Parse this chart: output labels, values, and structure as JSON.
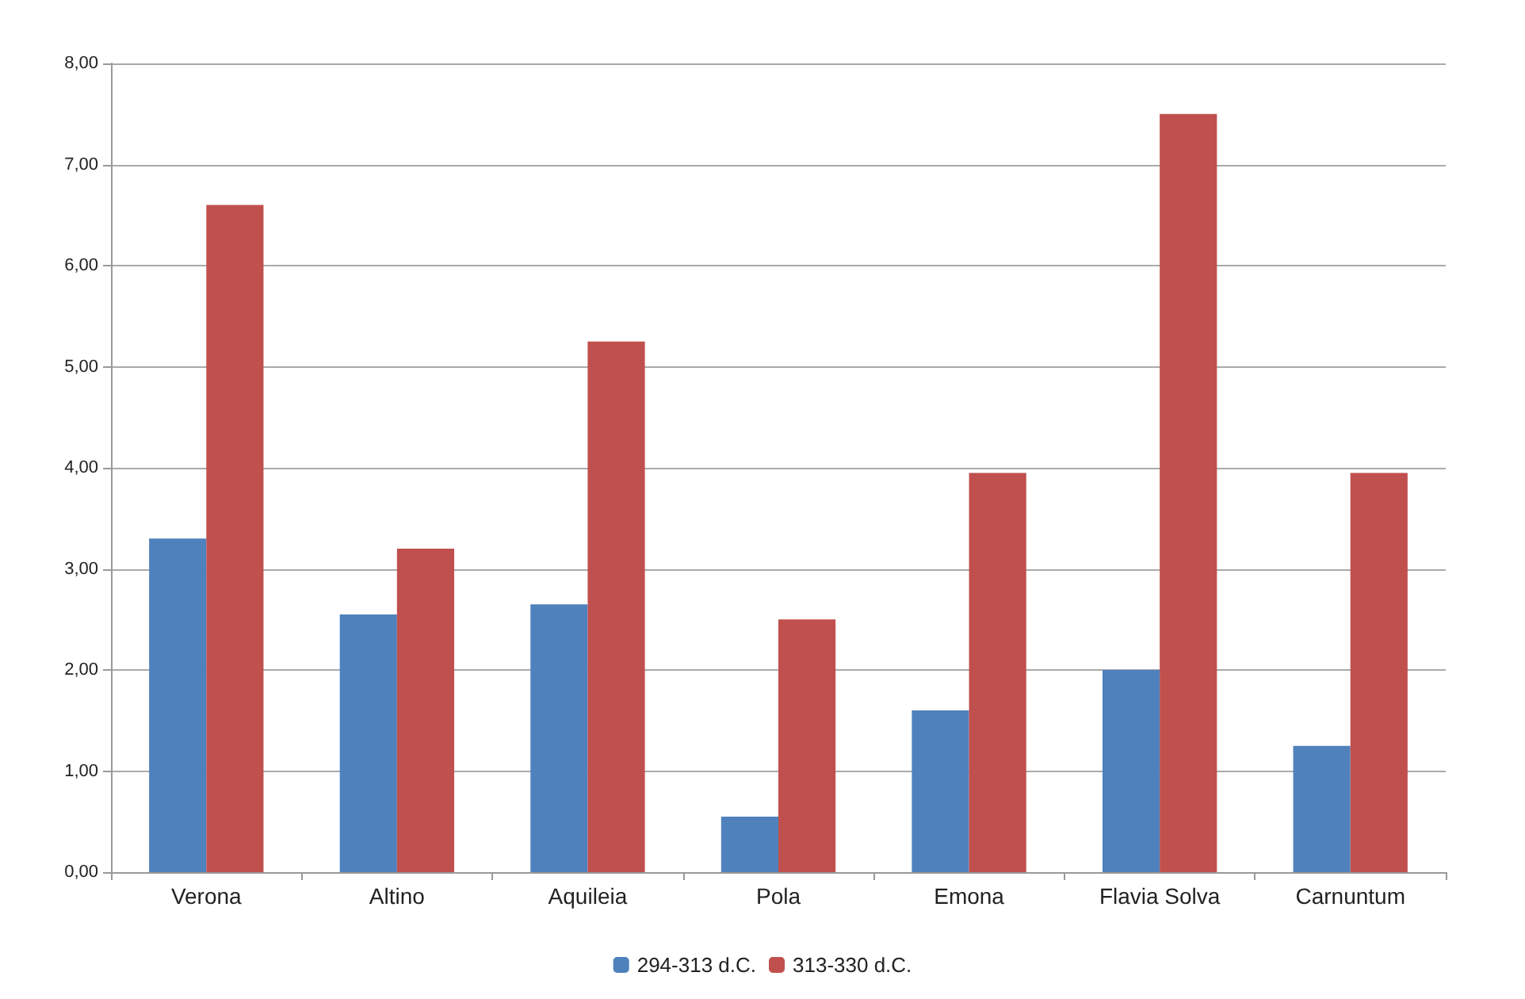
{
  "chart_data": {
    "type": "bar",
    "categories": [
      "Verona",
      "Altino",
      "Aquileia",
      "Pola",
      "Emona",
      "Flavia Solva",
      "Carnuntum"
    ],
    "series": [
      {
        "name": "294-313 d.C.",
        "color": "#4f81bd",
        "values": [
          3.3,
          2.55,
          2.65,
          0.55,
          1.6,
          2.0,
          1.25
        ]
      },
      {
        "name": "313-330 d.C.",
        "color": "#c0504d",
        "values": [
          6.6,
          3.2,
          5.25,
          2.5,
          3.95,
          7.5,
          3.95
        ]
      }
    ],
    "ylim": [
      0,
      8
    ],
    "yticks": [
      {
        "value": 0,
        "label": "0,00"
      },
      {
        "value": 1,
        "label": "1,00"
      },
      {
        "value": 2,
        "label": "2,00"
      },
      {
        "value": 3,
        "label": "3,00"
      },
      {
        "value": 4,
        "label": "4,00"
      },
      {
        "value": 5,
        "label": "5,00"
      },
      {
        "value": 6,
        "label": "6,00"
      },
      {
        "value": 7,
        "label": "7,00"
      },
      {
        "value": 8,
        "label": "8,00"
      }
    ],
    "grid": "y",
    "legend": "bottom"
  }
}
